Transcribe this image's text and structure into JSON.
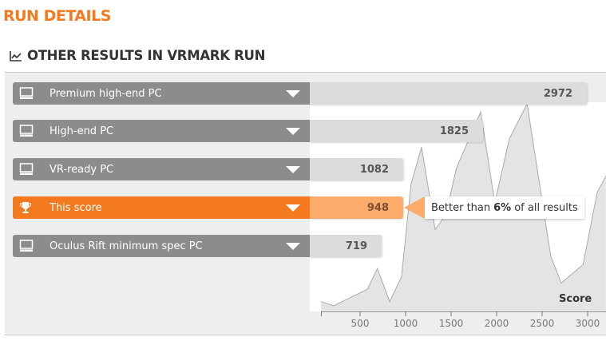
{
  "header": {
    "title": "RUN DETAILS",
    "section": "OTHER RESULTS IN VRMARK RUN"
  },
  "rows": [
    {
      "label": "Premium high-end PC",
      "score": "2972",
      "icon": "monitor-icon"
    },
    {
      "label": "High-end PC",
      "score": "1825",
      "icon": "monitor-icon"
    },
    {
      "label": "VR-ready PC",
      "score": "1082",
      "icon": "monitor-icon"
    },
    {
      "label": "This score",
      "score": "948",
      "icon": "trophy-icon"
    },
    {
      "label": "Oculus Rift minimum spec PC",
      "score": "719",
      "icon": "monitor-icon"
    }
  ],
  "tooltip": {
    "pre": "Better than ",
    "pct": "6%",
    "post": " of all results"
  },
  "colors": {
    "accent": "#f47a20",
    "accent_light": "#fdab6a",
    "bar": "#8c8c8c"
  },
  "chart_data": {
    "type": "area",
    "xlabel": "Score",
    "xlim": [
      70,
      3200
    ],
    "xticks": [
      "500",
      "1000",
      "1500",
      "2000",
      "2500",
      "3000"
    ],
    "tick_values": [
      500,
      1000,
      1500,
      2000,
      2500,
      3000
    ],
    "x": [
      70,
      210,
      580,
      690,
      825,
      955,
      1060,
      1175,
      1325,
      1440,
      1560,
      1825,
      1980,
      2140,
      2335,
      2595,
      2710,
      2950,
      3105,
      3200
    ],
    "density": [
      0.04,
      0.02,
      0.1,
      0.2,
      0.04,
      0.16,
      0.61,
      0.79,
      0.39,
      0.46,
      0.69,
      0.96,
      0.52,
      0.83,
      1.0,
      0.26,
      0.13,
      0.22,
      0.57,
      0.65
    ]
  }
}
